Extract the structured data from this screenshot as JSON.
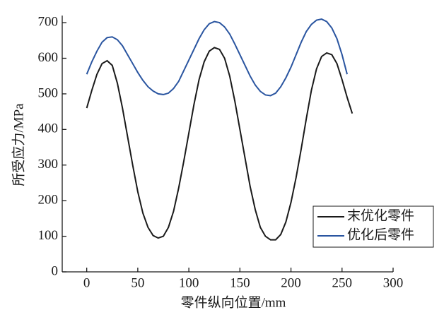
{
  "chart_data": {
    "type": "line",
    "xlabel": "零件纵向位置/mm",
    "ylabel": "所受应力/MPa",
    "xlim": [
      -24,
      300
    ],
    "ylim": [
      0,
      720
    ],
    "xticks": [
      0,
      50,
      100,
      150,
      200,
      250,
      300
    ],
    "yticks": [
      0,
      100,
      200,
      300,
      400,
      500,
      600,
      700
    ],
    "legend": "lower right",
    "series": [
      {
        "name": "末优化零件",
        "color": "#1a1a1a",
        "x": [
          0,
          5,
          10,
          15,
          20,
          25,
          30,
          35,
          40,
          45,
          50,
          55,
          60,
          65,
          70,
          75,
          80,
          85,
          90,
          95,
          100,
          105,
          110,
          115,
          120,
          125,
          130,
          135,
          140,
          145,
          150,
          155,
          160,
          165,
          170,
          175,
          180,
          185,
          190,
          195,
          200,
          205,
          210,
          215,
          220,
          225,
          230,
          235,
          240,
          245,
          250,
          255,
          260
        ],
        "values": [
          460,
          510,
          555,
          585,
          593,
          580,
          530,
          460,
          380,
          300,
          225,
          165,
          125,
          102,
          95,
          100,
          125,
          170,
          235,
          310,
          390,
          470,
          540,
          590,
          620,
          630,
          625,
          600,
          550,
          480,
          400,
          320,
          240,
          175,
          125,
          100,
          90,
          90,
          105,
          140,
          195,
          265,
          345,
          430,
          510,
          570,
          605,
          615,
          610,
          585,
          540,
          490,
          445
        ]
      },
      {
        "name": "优化后零件",
        "color": "#2a55a0",
        "x": [
          0,
          5,
          10,
          15,
          20,
          25,
          30,
          35,
          40,
          45,
          50,
          55,
          60,
          65,
          70,
          75,
          80,
          85,
          90,
          95,
          100,
          105,
          110,
          115,
          120,
          125,
          130,
          135,
          140,
          145,
          150,
          155,
          160,
          165,
          170,
          175,
          180,
          185,
          190,
          195,
          200,
          205,
          210,
          215,
          220,
          225,
          230,
          235,
          240,
          245,
          250,
          255
        ],
        "values": [
          555,
          590,
          620,
          645,
          658,
          660,
          652,
          635,
          610,
          585,
          560,
          538,
          520,
          508,
          500,
          498,
          502,
          515,
          535,
          565,
          595,
          625,
          655,
          680,
          697,
          703,
          700,
          688,
          668,
          640,
          610,
          580,
          550,
          525,
          507,
          497,
          495,
          502,
          520,
          545,
          575,
          610,
          645,
          675,
          695,
          707,
          710,
          703,
          685,
          655,
          610,
          555
        ]
      }
    ]
  }
}
